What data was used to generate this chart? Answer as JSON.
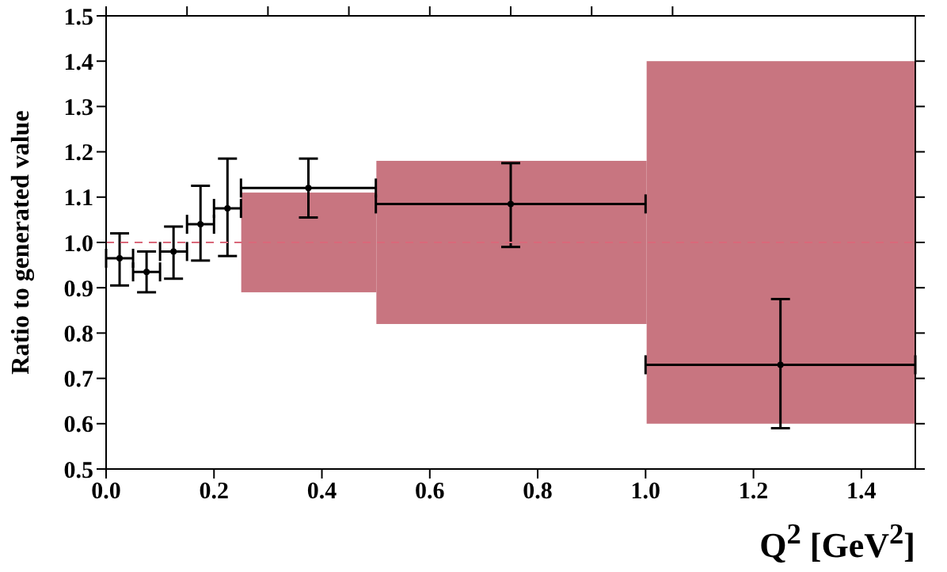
{
  "chart_data": {
    "type": "scatter",
    "xlabel": "Q$^{2}$ [GeV$^{2}$]",
    "ylabel": "Ratio to generated value",
    "xlim": [
      0,
      1.5
    ],
    "xticks": [
      {
        "value": 0,
        "label": "0.0"
      },
      0.2,
      0.4,
      0.6,
      0.8,
      {
        "value": 1,
        "label": "1.0"
      },
      1.2,
      1.4
    ],
    "ylim": [
      0.5,
      1.5
    ],
    "yticks": [
      0.5,
      0.6,
      0.7,
      0.8,
      0.9,
      {
        "value": 1,
        "label": "1.0"
      },
      1.1,
      1.2,
      1.3,
      1.4,
      1.5
    ],
    "marker": "circle",
    "ref_lines": [
      {
        "axis": "y",
        "value": 1,
        "color": "#d9687a",
        "line_style": "dashed"
      }
    ],
    "series": [
      {
        "type": "histogram",
        "color": "#c87580",
        "bins": [
          0.25,
          0.5,
          1,
          1.5
        ],
        "base": [
          0.89,
          0.82,
          0.6
        ],
        "values": [
          0.22,
          0.36,
          0.8
        ]
      },
      {
        "color": "#000000",
        "x": [
          0.025,
          0.075,
          0.125,
          0.175,
          0.225,
          0.375,
          0.75,
          1.25
        ],
        "values": [
          0.965,
          0.935,
          0.98,
          1.04,
          1.075,
          1.12,
          1.085,
          0.73
        ],
        "errors": [
          [
            0.905,
            1.02
          ],
          [
            0.89,
            0.98
          ],
          [
            0.92,
            1.035
          ],
          [
            0.96,
            1.125
          ],
          [
            0.97,
            1.185
          ],
          [
            1.055,
            1.185
          ],
          [
            0.99,
            1.175
          ],
          [
            0.59,
            0.875
          ]
        ],
        "xerrors": [
          0.025,
          0.025,
          0.025,
          0.025,
          0.025,
          0.125,
          0.25,
          0.25
        ]
      }
    ]
  }
}
